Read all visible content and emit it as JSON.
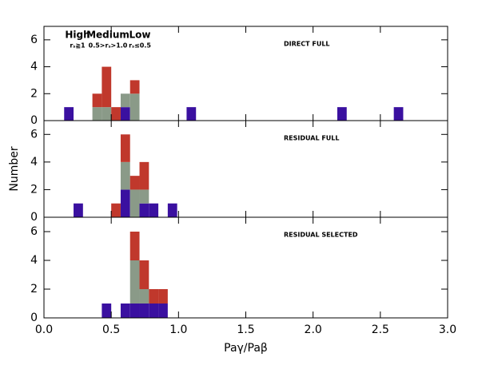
{
  "chart_data": [
    {
      "type": "histogram",
      "annotation": "DIRECT FULL",
      "bins": [
        0.15,
        0.22,
        0.29,
        0.36,
        0.43,
        0.5,
        0.57,
        0.64,
        0.71,
        0.78,
        0.85,
        0.92,
        0.99,
        1.06,
        1.13,
        1.2,
        1.27,
        1.34,
        1.41,
        1.48,
        1.55,
        1.62,
        1.69,
        1.76,
        1.83,
        1.9,
        1.97,
        2.04,
        2.11,
        2.18,
        2.25,
        2.32,
        2.39,
        2.46,
        2.53,
        2.6,
        2.67
      ],
      "series": [
        {
          "name": "High",
          "note": "rₛ≧1",
          "color": "#c0382c",
          "values": [
            0,
            0,
            0,
            1,
            3,
            1,
            0,
            1,
            0,
            0,
            0,
            0,
            0,
            0,
            0,
            0,
            0,
            0,
            0,
            0,
            0,
            0,
            0,
            0,
            0,
            0,
            0,
            0,
            0,
            0,
            0,
            0,
            0,
            0,
            0,
            0
          ]
        },
        {
          "name": "Medium",
          "note": "0.5>rₛ>1.0",
          "color": "#8a9a88",
          "values": [
            0,
            0,
            0,
            1,
            1,
            0,
            1,
            2,
            0,
            0,
            0,
            0,
            0,
            0,
            0,
            0,
            0,
            0,
            0,
            0,
            0,
            0,
            0,
            0,
            0,
            0,
            0,
            0,
            0,
            0,
            0,
            0,
            0,
            0,
            0,
            0
          ]
        },
        {
          "name": "Low",
          "note": "rₛ≤0.5",
          "color": "#3a10a0",
          "values": [
            1,
            0,
            0,
            0,
            0,
            0,
            1,
            0,
            0,
            0,
            0,
            0,
            0,
            1,
            0,
            0,
            0,
            0,
            0,
            0,
            0,
            0,
            0,
            0,
            0,
            0,
            0,
            0,
            0,
            1,
            0,
            0,
            0,
            0,
            0,
            1
          ]
        }
      ],
      "xlim": [
        0,
        3
      ],
      "ylim": [
        0,
        7
      ],
      "yticks": [
        0,
        2,
        4,
        6
      ]
    },
    {
      "type": "histogram",
      "annotation": "RESIDUAL FULL",
      "ylabel": "Number",
      "bins": [
        0.22,
        0.29,
        0.36,
        0.43,
        0.5,
        0.57,
        0.64,
        0.71,
        0.78,
        0.85,
        0.92,
        0.99,
        1.06
      ],
      "series": [
        {
          "color": "#c0382c",
          "values": [
            0,
            0,
            0,
            0,
            1,
            2,
            1,
            2,
            0,
            0,
            0,
            0
          ]
        },
        {
          "color": "#8a9a88",
          "values": [
            0,
            0,
            0,
            0,
            0,
            2,
            2,
            1,
            0,
            0,
            0,
            0
          ]
        },
        {
          "color": "#3a10a0",
          "values": [
            1,
            0,
            0,
            0,
            0,
            2,
            0,
            1,
            1,
            0,
            1,
            0
          ]
        }
      ],
      "xlim": [
        0,
        3
      ],
      "ylim": [
        0,
        7
      ],
      "yticks": [
        0,
        2,
        4,
        6
      ]
    },
    {
      "type": "histogram",
      "annotation": "RESIDUAL SELECTED",
      "xlabel": "Paγ/Paβ",
      "bins": [
        0.43,
        0.5,
        0.57,
        0.64,
        0.71,
        0.78,
        0.85,
        0.92
      ],
      "series": [
        {
          "color": "#c0382c",
          "values": [
            0,
            0,
            0,
            2,
            2,
            1,
            1
          ]
        },
        {
          "color": "#8a9a88",
          "values": [
            0,
            0,
            0,
            3,
            1,
            0,
            0
          ]
        },
        {
          "color": "#3a10a0",
          "values": [
            1,
            0,
            1,
            1,
            1,
            1,
            1
          ]
        }
      ],
      "xlim": [
        0,
        3
      ],
      "ylim": [
        0,
        7
      ],
      "yticks": [
        0,
        2,
        4,
        6
      ],
      "xticks": [
        {
          "value": 0,
          "label": "0.0"
        },
        {
          "value": 0.5,
          "label": "0.5"
        },
        {
          "value": 1,
          "label": "1.0"
        },
        {
          "value": 1.5,
          "label": "1.5"
        },
        {
          "value": 2,
          "label": "2.0"
        },
        {
          "value": 2.5,
          "label": "2.5"
        },
        {
          "value": 3,
          "label": "3.0"
        }
      ]
    }
  ]
}
